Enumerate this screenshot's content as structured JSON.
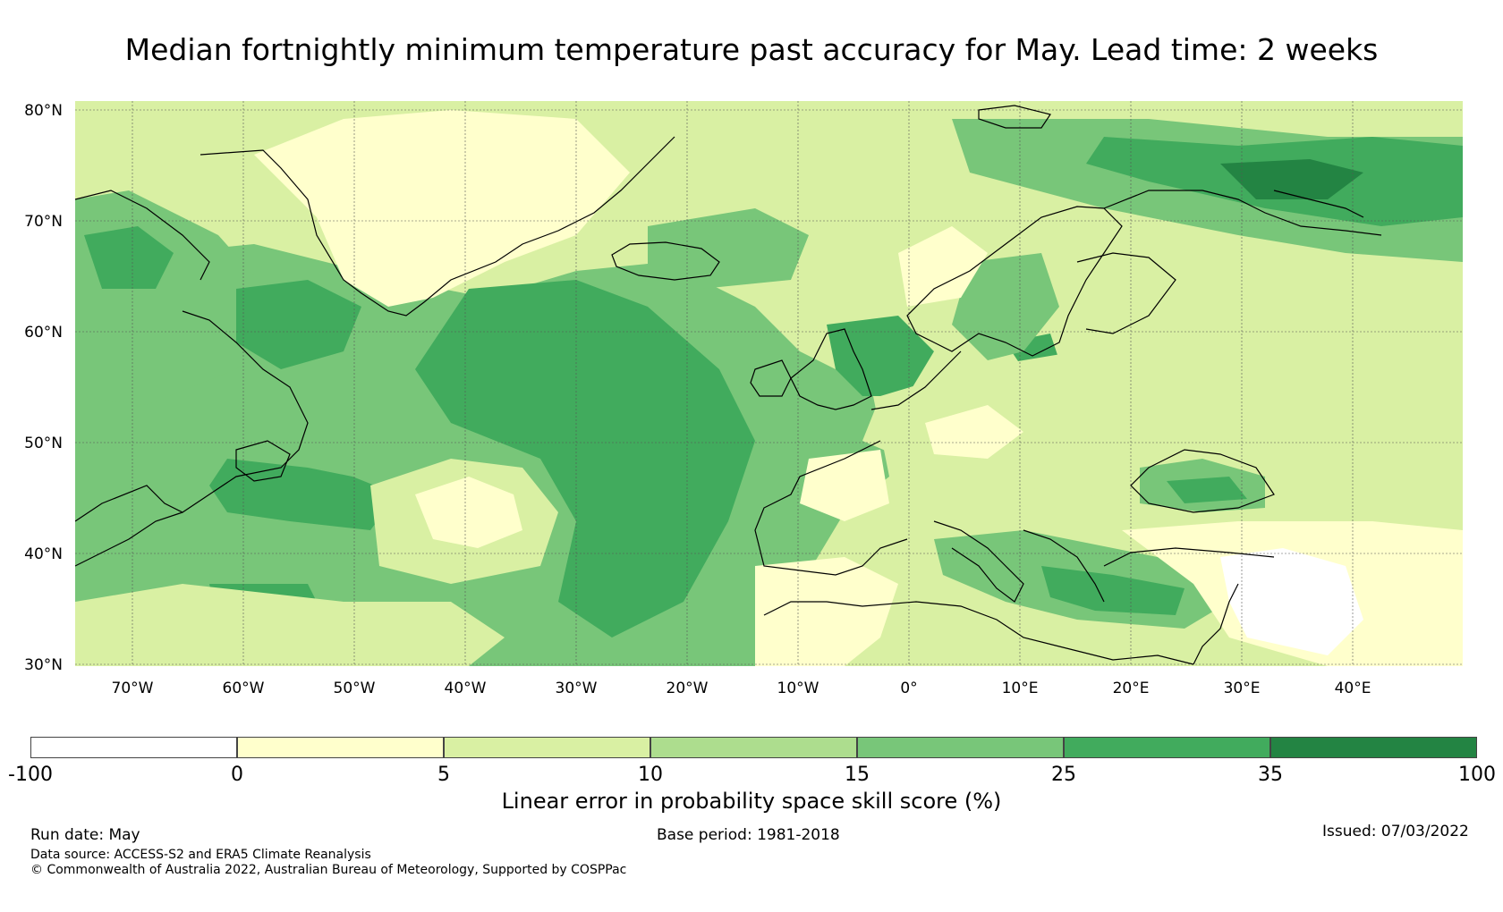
{
  "title": "Median fortnightly minimum temperature past accuracy for May. Lead time: 2 weeks",
  "map": {
    "lat_labels": [
      "80°N",
      "70°N",
      "60°N",
      "50°N",
      "40°N",
      "30°N"
    ],
    "lon_labels": [
      "70°W",
      "60°W",
      "50°W",
      "40°W",
      "30°W",
      "20°W",
      "10°W",
      "0°",
      "10°E",
      "20°E",
      "30°E",
      "40°E"
    ]
  },
  "colorbar": {
    "label": "Linear error in probability space skill score (%)",
    "ticks": [
      "-100",
      "0",
      "5",
      "10",
      "15",
      "25",
      "35",
      "100"
    ],
    "colors": [
      "#ffffff",
      "#ffffcc",
      "#d9f0a3",
      "#addd8e",
      "#78c679",
      "#41ab5d",
      "#238443"
    ]
  },
  "footer": {
    "run_date": "Run date: May",
    "base_period": "Base period: 1981-2018",
    "issued": "Issued: 07/03/2022",
    "data_source": "Data source: ACCESS-S2 and ERA5 Climate Reanalysis",
    "copyright": "© Commonwealth of Australia 2022, Australian Bureau of Meteorology, Supported by COSPPac"
  }
}
